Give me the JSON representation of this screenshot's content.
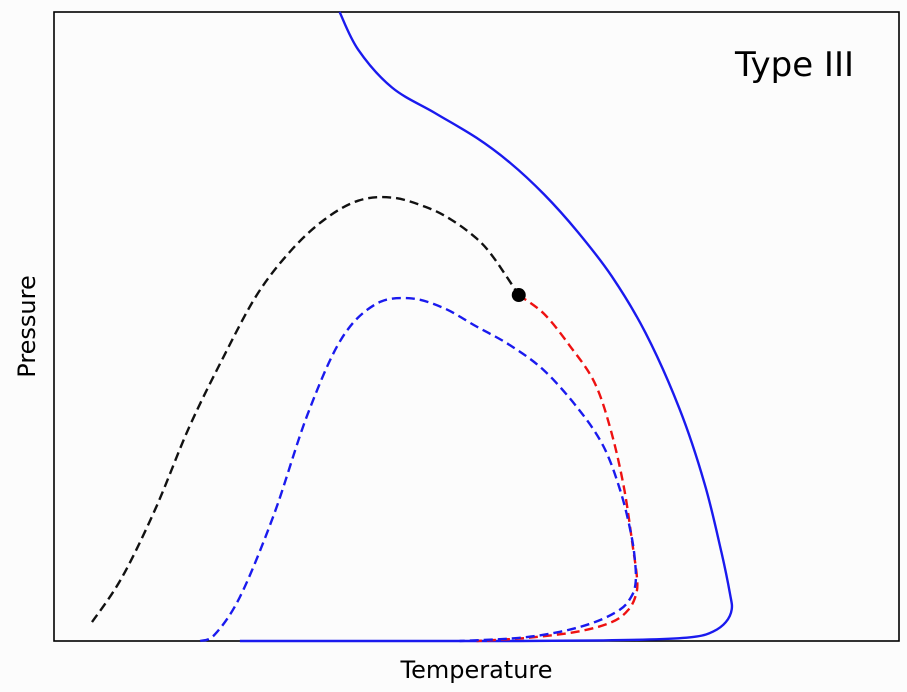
{
  "chart_data": {
    "type": "line",
    "title": "",
    "xlabel": "Temperature",
    "ylabel": "Pressure",
    "xlim": [
      0,
      1
    ],
    "ylim": [
      0,
      1
    ],
    "xticks": [],
    "yticks": [],
    "grid": false,
    "annotation": "Type III",
    "series": [
      {
        "style": "solid",
        "color": "#1a1aee",
        "x": [
          0.338,
          0.36,
          0.4,
          0.45,
          0.5,
          0.54,
          0.58,
          0.62,
          0.66,
          0.7,
          0.74,
          0.77,
          0.79,
          0.8,
          0.802,
          0.795,
          0.78,
          0.76,
          0.72,
          0.65,
          0.55,
          0.4,
          0.22
        ],
        "y": [
          1.0,
          0.94,
          0.88,
          0.84,
          0.8,
          0.76,
          0.71,
          0.65,
          0.58,
          0.49,
          0.37,
          0.25,
          0.14,
          0.075,
          0.05,
          0.03,
          0.015,
          0.007,
          0.003,
          0.001,
          0.0,
          0.0,
          0.0
        ]
      },
      {
        "style": "dashed",
        "color": "#111111",
        "x": [
          0.045,
          0.08,
          0.12,
          0.16,
          0.2,
          0.24,
          0.28,
          0.32,
          0.36,
          0.4,
          0.44,
          0.47,
          0.5,
          0.52,
          0.55
        ],
        "y": [
          0.03,
          0.1,
          0.21,
          0.34,
          0.45,
          0.55,
          0.62,
          0.67,
          0.7,
          0.705,
          0.69,
          0.67,
          0.64,
          0.61,
          0.55
        ]
      },
      {
        "style": "dashed",
        "color": "#ee1111",
        "x": [
          0.55,
          0.58,
          0.61,
          0.64,
          0.66,
          0.675,
          0.685,
          0.69,
          0.689,
          0.68,
          0.66,
          0.62,
          0.56,
          0.5
        ],
        "y": [
          0.55,
          0.52,
          0.47,
          0.41,
          0.33,
          0.24,
          0.15,
          0.1,
          0.075,
          0.05,
          0.03,
          0.015,
          0.005,
          0.0
        ]
      },
      {
        "style": "dashed",
        "color": "#1a1aee",
        "x": [
          0.173,
          0.19,
          0.22,
          0.26,
          0.3,
          0.34,
          0.38,
          0.42,
          0.46,
          0.5,
          0.54,
          0.58,
          0.62,
          0.65,
          0.67,
          0.683,
          0.688,
          0.688,
          0.683,
          0.67,
          0.64,
          0.6,
          0.55,
          0.48
        ],
        "y": [
          0.0,
          0.01,
          0.07,
          0.2,
          0.36,
          0.48,
          0.535,
          0.545,
          0.53,
          0.5,
          0.47,
          0.43,
          0.37,
          0.31,
          0.24,
          0.17,
          0.12,
          0.09,
          0.07,
          0.05,
          0.03,
          0.015,
          0.005,
          0.0
        ]
      }
    ],
    "critical_point": {
      "x": 0.55,
      "y": 0.55,
      "color": "#000000"
    }
  }
}
